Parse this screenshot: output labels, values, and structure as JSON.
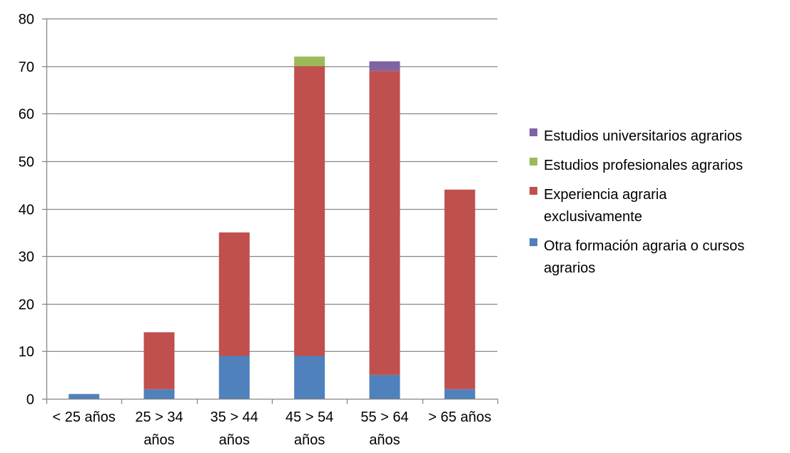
{
  "chart_data": {
    "type": "bar",
    "stacked": true,
    "categories": [
      [
        "< 25 años"
      ],
      [
        "25 > 34",
        "años"
      ],
      [
        "35 > 44",
        "años"
      ],
      [
        "45 > 54",
        "años"
      ],
      [
        "55 > 64",
        "años"
      ],
      [
        "> 65 años"
      ]
    ],
    "series": [
      {
        "name": "Otra formación agraria o cursos agrarios",
        "legend_lines": [
          "Otra formación agraria o cursos",
          "agrarios"
        ],
        "color": "#4F81BD",
        "values": [
          1,
          2,
          9,
          9,
          5,
          2
        ]
      },
      {
        "name": "Experiencia agraria exclusivamente",
        "legend_lines": [
          "Experiencia agraria",
          "exclusivamente"
        ],
        "color": "#C0504D",
        "values": [
          0,
          12,
          26,
          61,
          64,
          42
        ]
      },
      {
        "name": "Estudios profesionales agrarios",
        "legend_lines": [
          "Estudios profesionales agrarios"
        ],
        "color": "#9BBB59",
        "values": [
          0,
          0,
          0,
          2,
          0,
          0
        ]
      },
      {
        "name": "Estudios universitarios agrarios",
        "legend_lines": [
          "Estudios universitarios agrarios"
        ],
        "color": "#8064A2",
        "values": [
          0,
          0,
          0,
          0,
          2,
          0
        ]
      }
    ],
    "legend_order": [
      3,
      2,
      1,
      0
    ],
    "legend_position": "right",
    "ylim": [
      0,
      80
    ],
    "yticks": [
      0,
      10,
      20,
      30,
      40,
      50,
      60,
      70,
      80
    ],
    "grid": true,
    "gridline_color": "#868686",
    "title": "",
    "xlabel": "",
    "ylabel": ""
  }
}
